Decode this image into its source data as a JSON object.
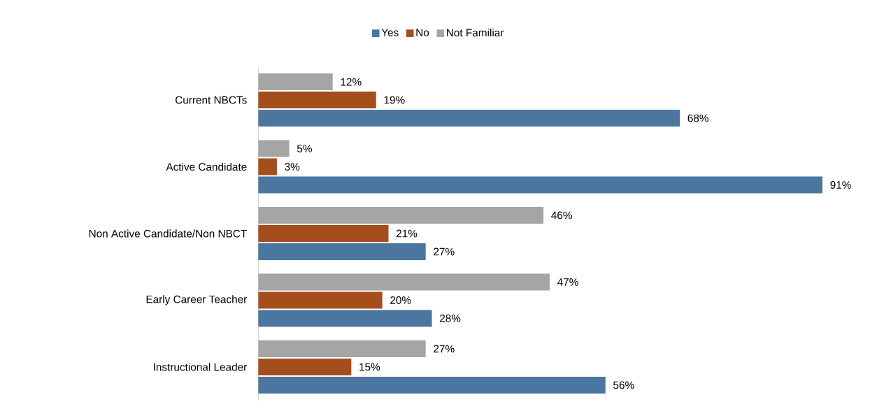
{
  "chart_data": {
    "type": "bar",
    "orientation": "horizontal",
    "legend": "top",
    "data_labels": true,
    "categories": [
      "Current NBCTs",
      "Active Candidate",
      "Non Active Candidate/Non NBCT",
      "Early Career Teacher",
      "Instructional Leader"
    ],
    "series": [
      {
        "name": "Yes",
        "color": "#4a76a0",
        "values": [
          68,
          91,
          27,
          28,
          56
        ],
        "value_labels": [
          "68%",
          "91%",
          "27%",
          "28%",
          "56%"
        ]
      },
      {
        "name": "No",
        "color": "#a64d1c",
        "values": [
          19,
          3,
          21,
          20,
          15
        ],
        "value_labels": [
          "19%",
          "3%",
          "21%",
          "20%",
          "15%"
        ]
      },
      {
        "name": "Not Familiar",
        "color": "#a5a5a5",
        "values": [
          12,
          5,
          46,
          47,
          27
        ],
        "value_labels": [
          "12%",
          "5%",
          "46%",
          "47%",
          "27%"
        ]
      }
    ]
  }
}
